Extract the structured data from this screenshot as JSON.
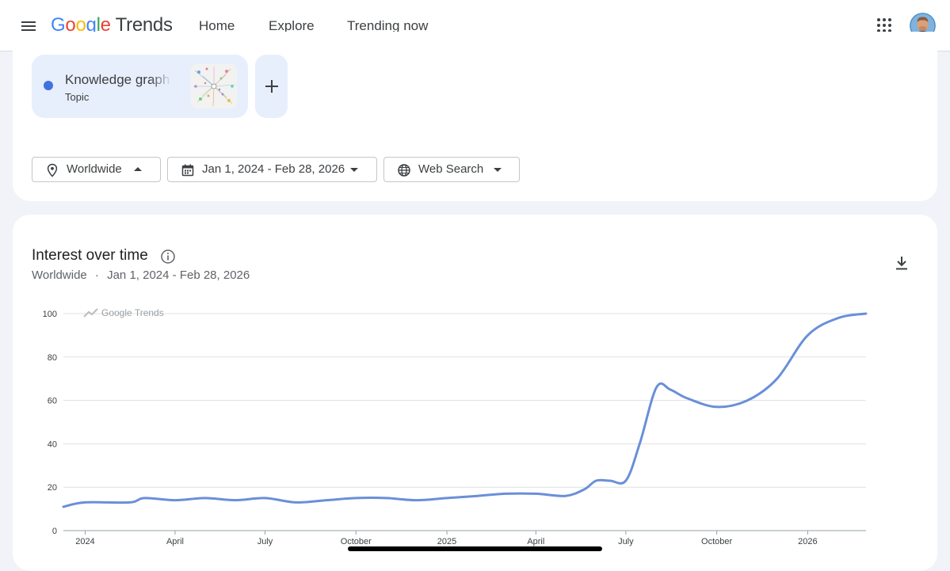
{
  "header": {
    "logo_parts": [
      "G",
      "o",
      "o",
      "g",
      "l",
      "e"
    ],
    "logo_suffix": "Trends",
    "nav": {
      "home": "Home",
      "explore": "Explore",
      "trending": "Trending now"
    },
    "active_nav": "Explore"
  },
  "search_term": {
    "title": "Knowledge graph",
    "type": "Topic",
    "dot_color": "#4072e0"
  },
  "filters": {
    "region": "Worldwide",
    "date_range": "Jan 1, 2024 - Feb 28, 2026",
    "property": "Web Search"
  },
  "chart_section": {
    "title": "Interest over time",
    "subtitle_region": "Worldwide",
    "subtitle_sep": "·",
    "subtitle_range": "Jan 1, 2024 - Feb 28, 2026",
    "watermark": "Google Trends"
  },
  "chart_data": {
    "type": "line",
    "title": "Interest over time",
    "xlabel": "",
    "ylabel": "",
    "ylim": [
      0,
      100
    ],
    "yticks": [
      0,
      20,
      40,
      60,
      80,
      100
    ],
    "xticks": [
      "2024",
      "April",
      "July",
      "October",
      "2025",
      "April",
      "July",
      "October",
      "2026"
    ],
    "grid": true,
    "legend": "none",
    "series": [
      {
        "color": "#6a8fd8",
        "x": [
          "2023-12-10",
          "2024-01-01",
          "2024-02-15",
          "2024-03-01",
          "2024-04-01",
          "2024-05-01",
          "2024-06-01",
          "2024-07-01",
          "2024-08-01",
          "2024-09-01",
          "2024-10-01",
          "2024-11-01",
          "2024-12-01",
          "2025-01-01",
          "2025-02-01",
          "2025-03-01",
          "2025-04-01",
          "2025-05-01",
          "2025-05-20",
          "2025-06-01",
          "2025-06-15",
          "2025-07-01",
          "2025-07-15",
          "2025-08-01",
          "2025-08-15",
          "2025-09-01",
          "2025-10-01",
          "2025-11-01",
          "2025-12-01",
          "2026-01-01",
          "2026-02-01",
          "2026-03-01"
        ],
        "values": [
          11,
          13,
          13,
          15,
          14,
          15,
          14,
          15,
          13,
          14,
          15,
          15,
          14,
          15,
          16,
          17,
          17,
          16,
          19,
          23,
          23,
          23,
          40,
          66,
          65,
          61,
          57,
          60,
          70,
          90,
          98,
          100
        ]
      }
    ]
  }
}
